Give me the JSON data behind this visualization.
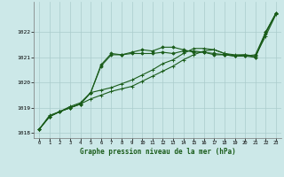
{
  "title": "Graphe pression niveau de la mer (hPa)",
  "background_color": "#cce8e8",
  "plot_bg_color": "#cce8e8",
  "grid_color": "#aacccc",
  "line_color": "#1a5c1a",
  "xlim": [
    -0.5,
    23.5
  ],
  "ylim": [
    1017.8,
    1023.2
  ],
  "yticks": [
    1018,
    1019,
    1020,
    1021,
    1022
  ],
  "xticks": [
    0,
    1,
    2,
    3,
    4,
    5,
    6,
    7,
    8,
    9,
    10,
    11,
    12,
    13,
    14,
    15,
    16,
    17,
    18,
    19,
    20,
    21,
    22,
    23
  ],
  "series1_x": [
    0,
    1,
    2,
    3,
    4,
    5,
    6,
    7,
    8,
    9,
    10,
    11,
    12,
    13,
    14,
    15,
    16,
    17,
    18,
    19,
    20,
    21,
    22,
    23
  ],
  "series1_y": [
    1018.15,
    1018.65,
    1018.85,
    1019.0,
    1019.15,
    1019.35,
    1019.5,
    1019.65,
    1019.75,
    1019.85,
    1020.05,
    1020.25,
    1020.45,
    1020.65,
    1020.9,
    1021.1,
    1021.25,
    1021.3,
    1021.15,
    1021.05,
    1021.1,
    1021.05,
    1021.85,
    1022.7
  ],
  "series2_x": [
    0,
    1,
    2,
    3,
    4,
    5,
    6,
    7,
    8,
    9,
    10,
    11,
    12,
    13,
    14,
    15,
    16,
    17,
    18,
    19,
    20,
    21,
    22,
    23
  ],
  "series2_y": [
    1018.15,
    1018.65,
    1018.85,
    1019.0,
    1019.15,
    1019.6,
    1020.65,
    1021.1,
    1021.1,
    1021.15,
    1021.15,
    1021.15,
    1021.2,
    1021.15,
    1021.25,
    1021.25,
    1021.2,
    1021.15,
    1021.1,
    1021.05,
    1021.05,
    1021.0,
    1021.95,
    1022.75
  ],
  "series3_x": [
    0,
    1,
    2,
    3,
    4,
    5,
    6,
    7,
    8,
    9,
    10,
    11,
    12,
    13,
    14,
    15,
    16,
    17,
    18,
    19,
    20,
    21,
    22,
    23
  ],
  "series3_y": [
    1018.15,
    1018.65,
    1018.85,
    1019.0,
    1019.15,
    1019.6,
    1020.7,
    1021.15,
    1021.1,
    1021.2,
    1021.3,
    1021.25,
    1021.4,
    1021.4,
    1021.3,
    1021.2,
    1021.2,
    1021.1,
    1021.1,
    1021.05,
    1021.05,
    1021.1,
    1022.0,
    1022.75
  ],
  "series4_x": [
    0,
    1,
    2,
    3,
    4,
    5,
    6,
    7,
    8,
    9,
    10,
    11,
    12,
    13,
    14,
    15,
    16,
    17,
    18,
    19,
    20,
    21,
    22,
    23
  ],
  "series4_y": [
    1018.15,
    1018.7,
    1018.85,
    1019.05,
    1019.2,
    1019.6,
    1019.7,
    1019.8,
    1019.95,
    1020.1,
    1020.3,
    1020.5,
    1020.75,
    1020.9,
    1021.15,
    1021.35,
    1021.35,
    1021.3,
    1021.15,
    1021.1,
    1021.1,
    1021.0,
    1022.0,
    1022.75
  ]
}
